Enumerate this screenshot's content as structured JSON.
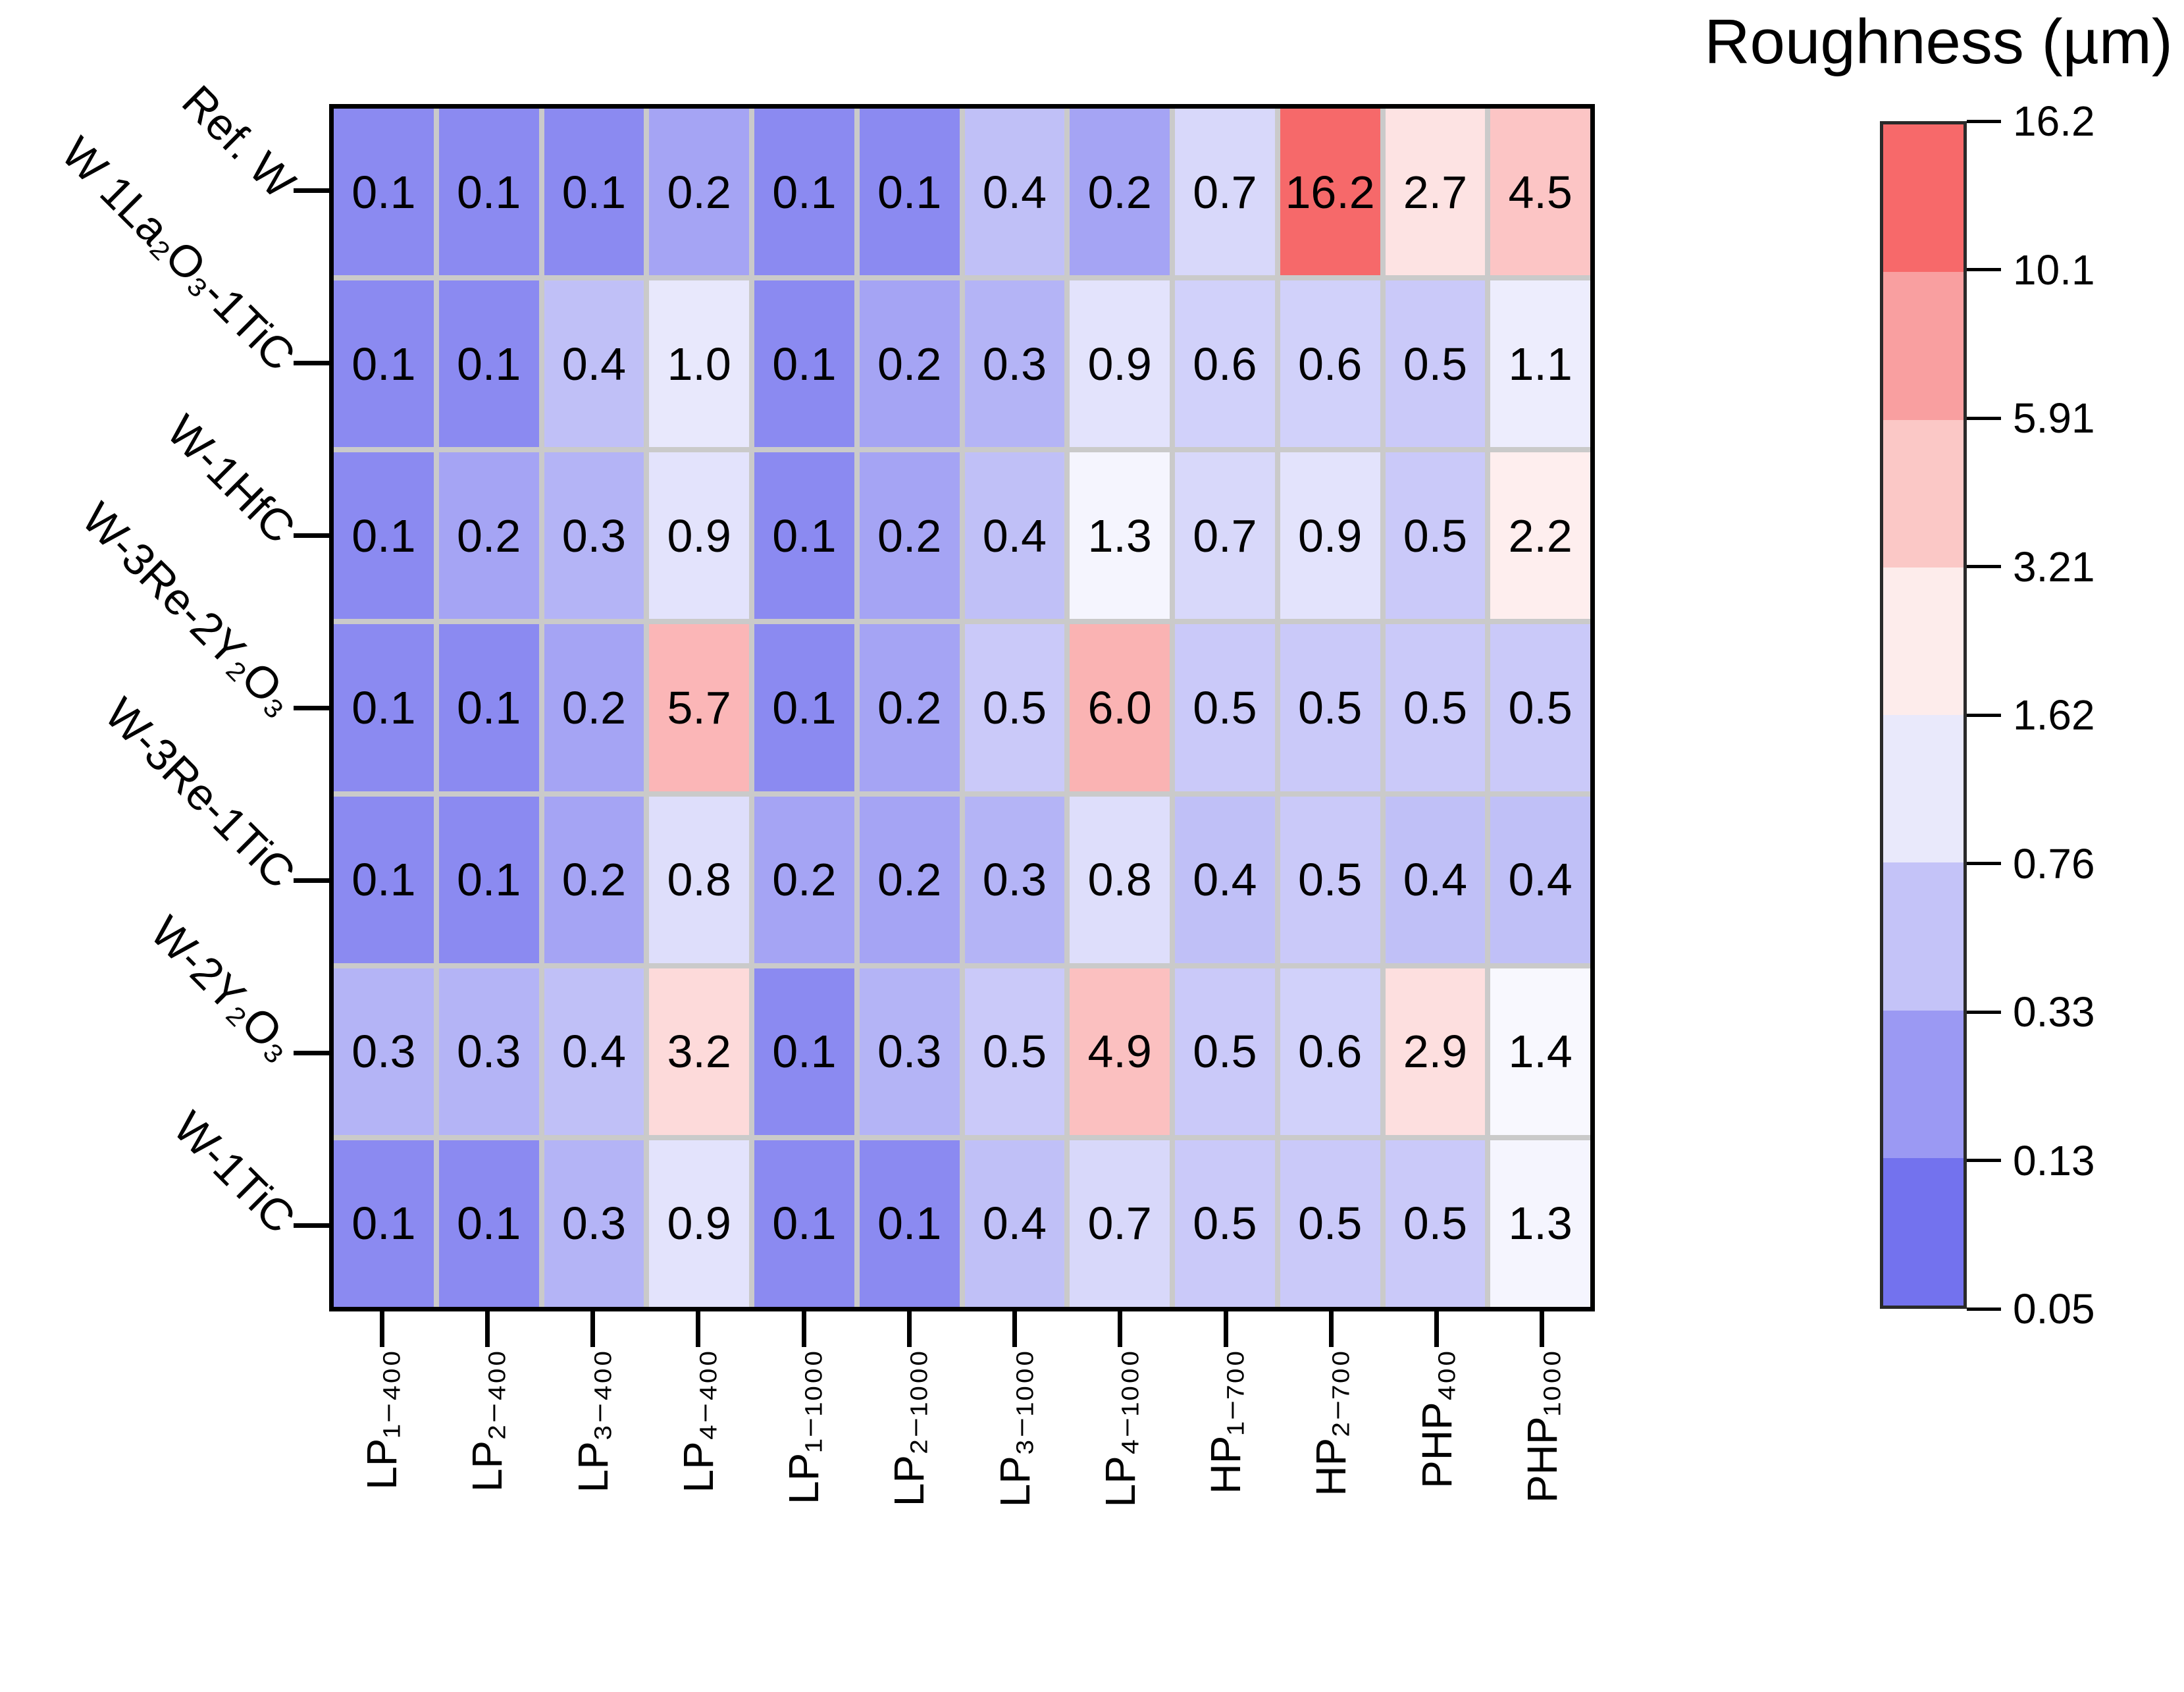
{
  "chart_data": {
    "type": "heatmap",
    "title": "",
    "colorbar_title": "Roughness (µm)",
    "rows": [
      "Ref. W",
      "W 1La₂O₃-1TiC",
      "W-1HfC",
      "W-3Re-2Y₂O₃",
      "W-3Re-1TiC",
      "W-2Y₂O₃",
      "W-1TiC"
    ],
    "columns": [
      "LP₁₋₄₀₀",
      "LP₂₋₄₀₀",
      "LP₃₋₄₀₀",
      "LP₄₋₄₀₀",
      "LP₁₋₁₀₀₀",
      "LP₂₋₁₀₀₀",
      "LP₃₋₁₀₀₀",
      "LP₄₋₁₀₀₀",
      "HP₁₋₇₀₀",
      "HP₂₋₇₀₀",
      "PHP₄₀₀",
      "PHP₁₀₀₀"
    ],
    "values": [
      [
        "0.1",
        "0.1",
        "0.1",
        "0.2",
        "0.1",
        "0.1",
        "0.4",
        "0.2",
        "0.7",
        "16.2",
        "2.7",
        "4.5"
      ],
      [
        "0.1",
        "0.1",
        "0.4",
        "1.0",
        "0.1",
        "0.2",
        "0.3",
        "0.9",
        "0.6",
        "0.6",
        "0.5",
        "1.1"
      ],
      [
        "0.1",
        "0.2",
        "0.3",
        "0.9",
        "0.1",
        "0.2",
        "0.4",
        "1.3",
        "0.7",
        "0.9",
        "0.5",
        "2.2"
      ],
      [
        "0.1",
        "0.1",
        "0.2",
        "5.7",
        "0.1",
        "0.2",
        "0.5",
        "6.0",
        "0.5",
        "0.5",
        "0.5",
        "0.5"
      ],
      [
        "0.1",
        "0.1",
        "0.2",
        "0.8",
        "0.2",
        "0.2",
        "0.3",
        "0.8",
        "0.4",
        "0.5",
        "0.4",
        "0.4"
      ],
      [
        "0.3",
        "0.3",
        "0.4",
        "3.2",
        "0.1",
        "0.3",
        "0.5",
        "4.9",
        "0.5",
        "0.6",
        "2.9",
        "1.4"
      ],
      [
        "0.1",
        "0.1",
        "0.3",
        "0.9",
        "0.1",
        "0.1",
        "0.4",
        "0.7",
        "0.5",
        "0.5",
        "0.5",
        "1.3"
      ]
    ],
    "colorbar_ticks_top_to_bottom": [
      "16.2",
      "10.1",
      "5.91",
      "3.21",
      "1.62",
      "0.76",
      "0.33",
      "0.13",
      "0.05"
    ],
    "value_domain": [
      0.05,
      16.2
    ],
    "scale_type": "log-banded",
    "legend_position": "right",
    "grid": true,
    "colors": {
      "low": "#7170ee",
      "mid": "#ffffff",
      "high": "#f6696a",
      "gridline": "#cacaca",
      "spine": "#000000",
      "band_colors_top_to_bottom": [
        "#f7696a",
        "#f99fa0",
        "#fbc8c6",
        "#fdeceb",
        "#e9e9fb",
        "#c4c3f8",
        "#9b99f3",
        "#7372ee"
      ]
    }
  }
}
